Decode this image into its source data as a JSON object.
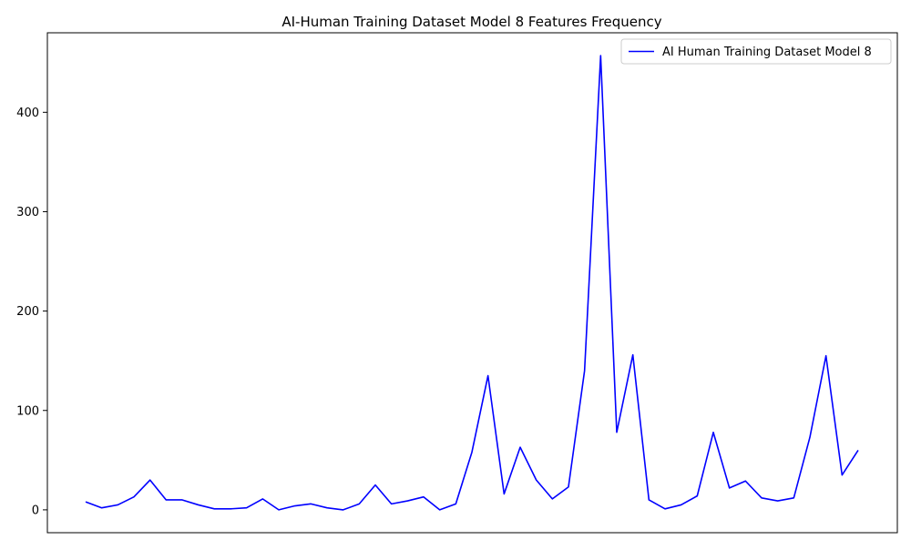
{
  "chart_data": {
    "type": "line",
    "title": "AI-Human Training Dataset Model 8 Features Frequency",
    "xlabel": "",
    "ylabel": "",
    "ylim": [
      -23,
      480
    ],
    "yticks": [
      0,
      100,
      200,
      300,
      400
    ],
    "x_ticks_shown": false,
    "grid": false,
    "legend_position": "top-right",
    "series": [
      {
        "name": "AI Human Training Dataset Model 8",
        "color": "#0000ff",
        "values": [
          8,
          2,
          5,
          13,
          30,
          10,
          10,
          5,
          1,
          1,
          2,
          11,
          0,
          4,
          6,
          2,
          0,
          6,
          25,
          6,
          9,
          13,
          0,
          6,
          58,
          135,
          16,
          63,
          30,
          11,
          23,
          140,
          457,
          78,
          156,
          10,
          1,
          5,
          14,
          78,
          22,
          29,
          12,
          9,
          12,
          73,
          155,
          35,
          60
        ]
      }
    ]
  }
}
